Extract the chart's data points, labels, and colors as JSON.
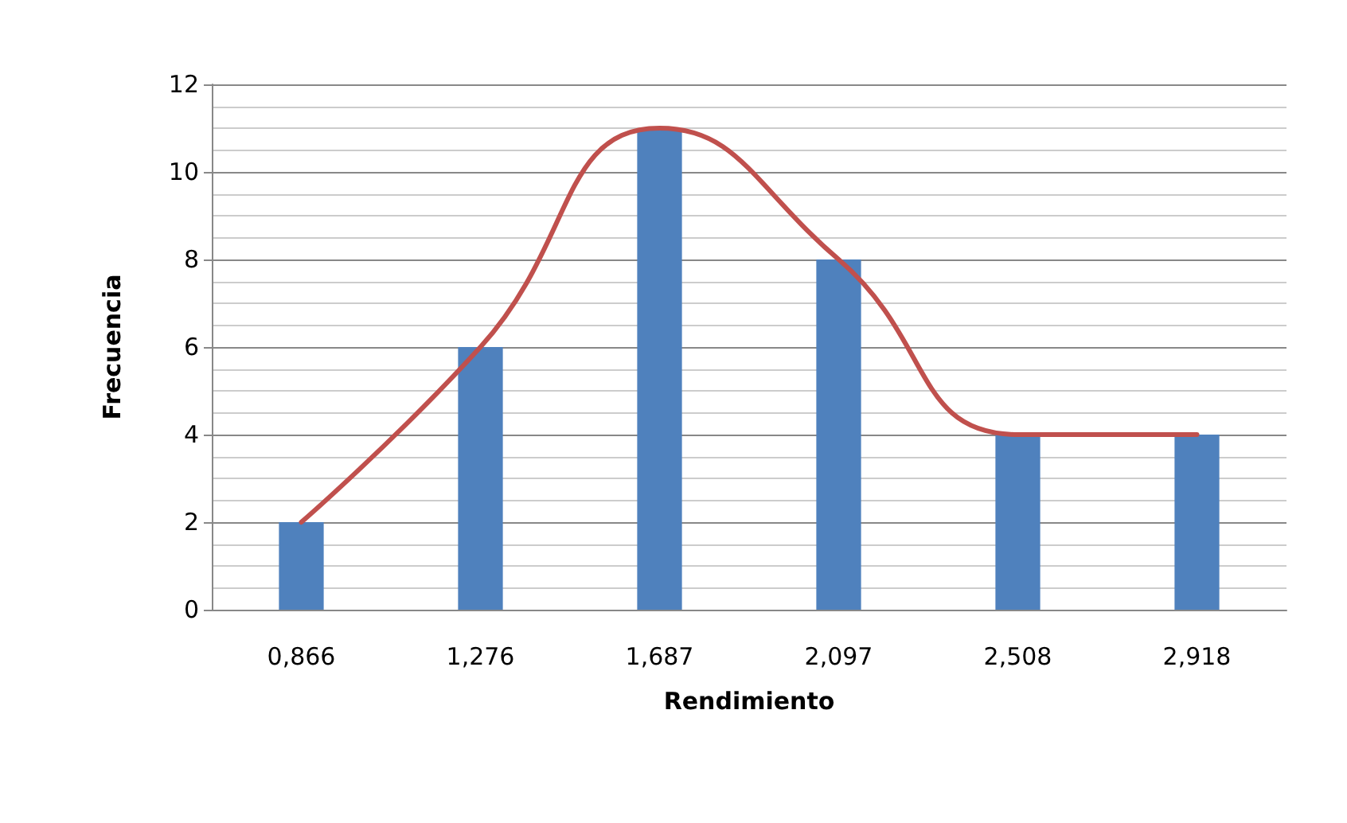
{
  "chart_data": {
    "type": "bar",
    "xlabel": "Rendimiento",
    "ylabel": "Frecuencia",
    "categories": [
      "0,866",
      "1,276",
      "1,687",
      "2,097",
      "2,508",
      "2,918"
    ],
    "series": [
      {
        "color": "#4f81bd",
        "values": [
          2,
          6,
          11,
          8,
          4,
          4
        ]
      },
      {
        "type": "line",
        "color": "#c0504d",
        "values": [
          2,
          6,
          11,
          8,
          4,
          4
        ],
        "marker": "none",
        "line_style": "solid"
      }
    ],
    "ylim": [
      0,
      12
    ],
    "yticks": [
      0,
      2,
      4,
      6,
      8,
      10,
      12
    ],
    "grid": "y"
  }
}
